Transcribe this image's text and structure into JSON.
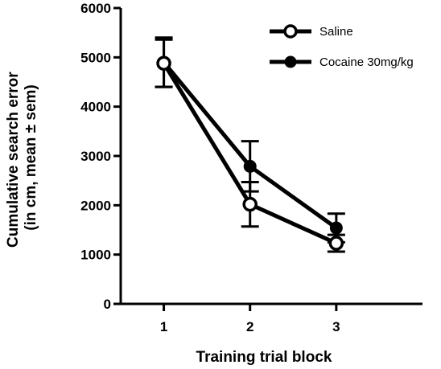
{
  "chart_data": {
    "type": "line",
    "xlabel": "Training trial block",
    "ylabel": [
      "Cumulative search error",
      "(in cm, mean ± sem)"
    ],
    "x": [
      1,
      2,
      3
    ],
    "x_ticks": [
      "1",
      "2",
      "3"
    ],
    "xlim": [
      0.5,
      4.0
    ],
    "ylim": [
      0,
      6000
    ],
    "y_ticks": [
      0,
      1000,
      2000,
      3000,
      4000,
      5000,
      6000
    ],
    "grid": false,
    "legend_position": "top-right",
    "series": [
      {
        "name": "Saline",
        "marker": "open-circle",
        "color": "#000000",
        "values": [
          4880,
          2020,
          1230
        ],
        "error": [
          480,
          450,
          170
        ]
      },
      {
        "name": "Cocaine 30mg/kg",
        "marker": "filled-circle",
        "color": "#000000",
        "values": [
          4900,
          2790,
          1540
        ],
        "error": [
          500,
          510,
          290
        ]
      }
    ]
  }
}
